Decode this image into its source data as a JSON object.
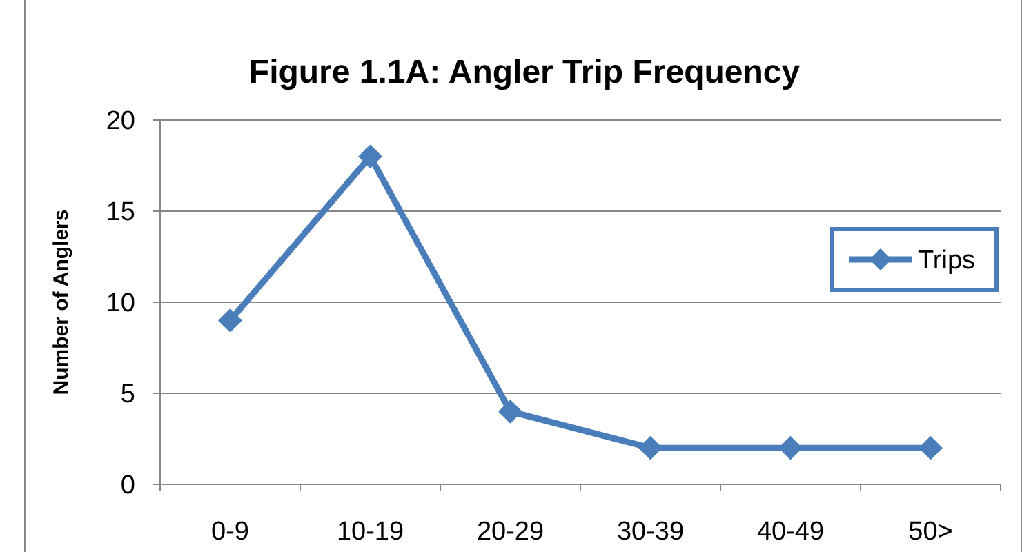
{
  "chart_data": {
    "type": "line",
    "title": "Figure 1.1A:  Angler Trip Frequency",
    "ylabel": "Number of Anglers",
    "categories": [
      "0-9",
      "10-19",
      "20-29",
      "30-39",
      "40-49",
      "50>"
    ],
    "series": [
      {
        "name": "Trips",
        "color": "#4a7ebb",
        "values": [
          9,
          18,
          4,
          2,
          2,
          2
        ]
      }
    ],
    "ylim": [
      0,
      20
    ],
    "yticks": [
      0,
      5,
      10,
      15,
      20
    ],
    "grid": "y",
    "legend": "right",
    "marker": "diamond",
    "line_style": "solid"
  }
}
